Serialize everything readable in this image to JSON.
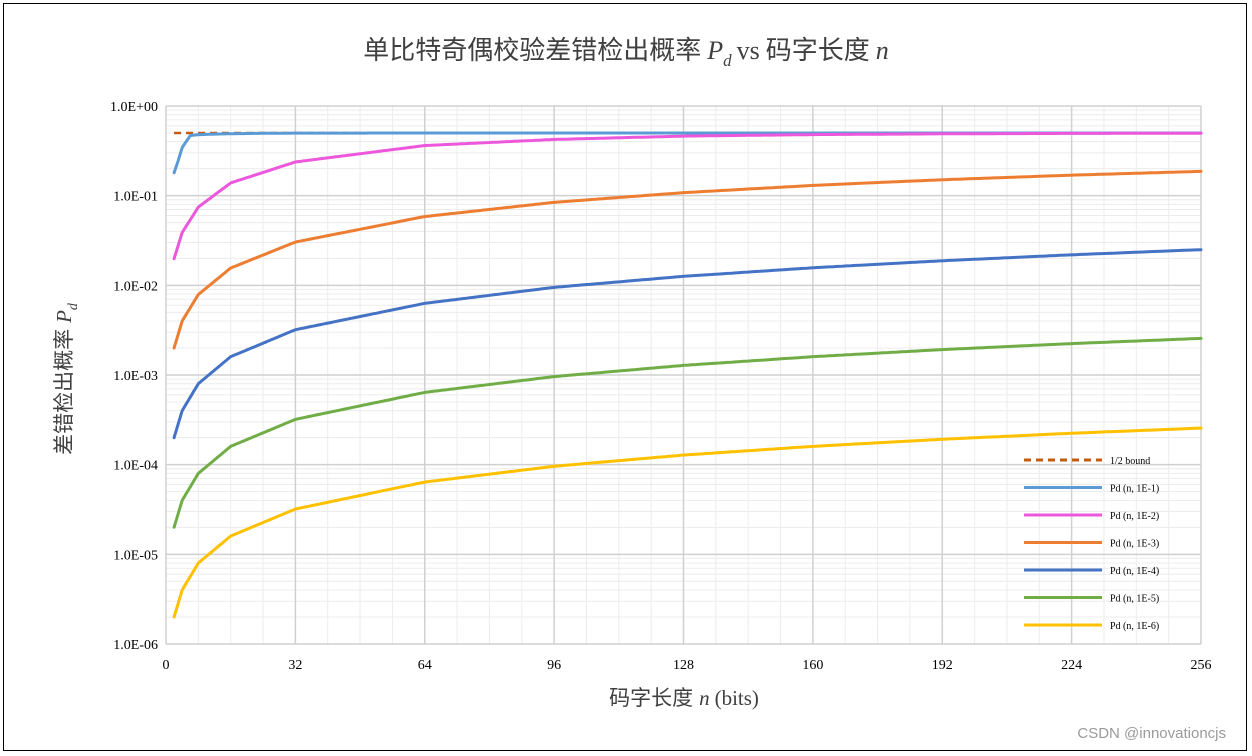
{
  "chart_data": {
    "type": "line",
    "title_main": "单比特奇偶校验差错检出概率",
    "title_var": "P",
    "title_sub": "d",
    "title_mid": "vs",
    "title_end": "码字长度",
    "title_n": "n",
    "ylabel_main": "差错检出概率",
    "ylabel_var": "P",
    "ylabel_sub": "d",
    "xlabel_main": "码字长度",
    "xlabel_var": "n",
    "xlabel_unit": "(bits)",
    "x_scale": "linear",
    "y_scale": "log",
    "xlim": [
      0,
      256
    ],
    "ylim": [
      1e-06,
      1
    ],
    "xticks": [
      0,
      32,
      64,
      96,
      128,
      160,
      192,
      224,
      256
    ],
    "yticks": [
      {
        "value": 1,
        "label": "1.0E+00"
      },
      {
        "value": 0.1,
        "label": "1.0E-01"
      },
      {
        "value": 0.01,
        "label": "1.0E-02"
      },
      {
        "value": 0.001,
        "label": "1.0E-03"
      },
      {
        "value": 0.0001,
        "label": "1.0E-04"
      },
      {
        "value": 1e-05,
        "label": "1.0E-05"
      },
      {
        "value": 1e-06,
        "label": "1.0E-06"
      }
    ],
    "grid": true,
    "legend_position": "bottom-right",
    "series": [
      {
        "name": "1/2 bound",
        "color": "#c55a11",
        "dashed": true,
        "x": [
          2,
          256
        ],
        "y": [
          0.5,
          0.5
        ]
      },
      {
        "name": "Pd (n, 1E-1)",
        "color": "#5b9bd5",
        "dashed": false,
        "x": [
          2,
          3,
          4,
          6,
          8,
          12,
          16,
          24,
          32,
          64,
          128,
          256
        ],
        "y": [
          0.18,
          0.244,
          0.3439,
          0.4686,
          0.4785,
          0.4859,
          0.4907,
          0.496,
          0.4983,
          0.5,
          0.5,
          0.5
        ]
      },
      {
        "name": "Pd (n, 1E-2)",
        "color": "#ec57db",
        "dashed": false,
        "x": [
          2,
          4,
          8,
          16,
          32,
          64,
          96,
          128,
          160,
          192,
          224,
          256
        ],
        "y": [
          0.0198,
          0.0388,
          0.0746,
          0.1387,
          0.2376,
          0.3622,
          0.4236,
          0.4617,
          0.48,
          0.4894,
          0.4947,
          0.4971
        ]
      },
      {
        "name": "Pd (n, 1E-3)",
        "color": "#ed7d31",
        "dashed": false,
        "x": [
          2,
          4,
          8,
          16,
          32,
          64,
          96,
          128,
          160,
          192,
          224,
          256
        ],
        "y": [
          0.002,
          0.004,
          0.0079,
          0.0156,
          0.0304,
          0.0585,
          0.0843,
          0.1081,
          0.1301,
          0.1505,
          0.1693,
          0.1867
        ]
      },
      {
        "name": "Pd (n, 1E-4)",
        "color": "#4472c4",
        "dashed": false,
        "x": [
          2,
          4,
          8,
          16,
          32,
          64,
          96,
          128,
          160,
          192,
          224,
          256
        ],
        "y": [
          0.0002,
          0.0004,
          0.0008,
          0.0016,
          0.0032,
          0.0063,
          0.0095,
          0.0126,
          0.0157,
          0.0188,
          0.0219,
          0.025
        ]
      },
      {
        "name": "Pd (n, 1E-5)",
        "color": "#70ad47",
        "dashed": false,
        "x": [
          2,
          4,
          8,
          16,
          32,
          64,
          96,
          128,
          160,
          192,
          224,
          256
        ],
        "y": [
          2e-05,
          4e-05,
          8e-05,
          0.00016,
          0.00032,
          0.00064,
          0.00096,
          0.00128,
          0.0016,
          0.00192,
          0.00224,
          0.00256
        ]
      },
      {
        "name": "Pd (n, 1E-6)",
        "color": "#ffc000",
        "dashed": false,
        "x": [
          2,
          4,
          8,
          16,
          32,
          64,
          96,
          128,
          160,
          192,
          224,
          256
        ],
        "y": [
          2e-06,
          4e-06,
          8e-06,
          1.6e-05,
          3.2e-05,
          6.4e-05,
          9.6e-05,
          0.000128,
          0.00016,
          0.000192,
          0.000224,
          0.000256
        ]
      }
    ]
  },
  "watermark": "CSDN @innovationcjs"
}
